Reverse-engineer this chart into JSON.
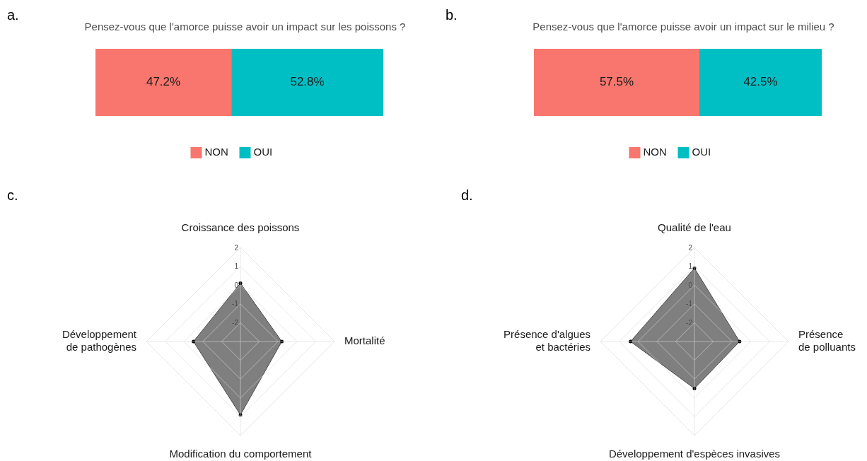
{
  "chart_data": [
    {
      "type": "bar",
      "orientation": "horizontal",
      "stacked": true,
      "title": "Pensez-vous que l'amorce puisse avoir un impact sur les poissons ?",
      "categories": [
        null
      ],
      "legend": "bottom",
      "annotations": [
        "a."
      ],
      "series": [
        {
          "name": "NON",
          "color": "#f8766d",
          "values": [
            47.2
          ],
          "value_labels": [
            "47.2%"
          ]
        },
        {
          "name": "OUI",
          "color": "#00bfc4",
          "values": [
            52.8
          ],
          "value_labels": [
            "52.8%"
          ]
        }
      ]
    },
    {
      "type": "bar",
      "orientation": "horizontal",
      "stacked": true,
      "title": "Pensez-vous que l'amorce puisse avoir un impact sur le milieu ?",
      "categories": [
        null
      ],
      "legend": "bottom",
      "annotations": [
        "b."
      ],
      "series": [
        {
          "name": "NON",
          "color": "#f8766d",
          "values": [
            57.5
          ],
          "value_labels": [
            "57.5%"
          ]
        },
        {
          "name": "OUI",
          "color": "#00bfc4",
          "values": [
            42.5
          ],
          "value_labels": [
            "42.5%"
          ]
        }
      ]
    },
    {
      "type": "radar",
      "categories": [
        "Croissance des poissons",
        "Mortalité",
        "Modification du comportement",
        "Développement\nde pathogènes"
      ],
      "ylim": [
        -3,
        2
      ],
      "yticks": [
        -2,
        -1,
        0,
        1,
        2
      ],
      "grid": true,
      "marker": "circle",
      "annotations": [
        "c."
      ],
      "series": [
        {
          "color": "#7f7f7f",
          "values": [
            0.1,
            -0.8,
            0.9,
            -0.5
          ]
        }
      ]
    },
    {
      "type": "radar",
      "categories": [
        "Qualité de l'eau",
        "Présence\nde polluants",
        "Développement d'espèces invasives",
        "Présence d'algues\net bactéries"
      ],
      "ylim": [
        -3,
        2
      ],
      "yticks": [
        -2,
        -1,
        0,
        1,
        2
      ],
      "grid": true,
      "marker": "circle",
      "annotations": [
        "d."
      ],
      "series": [
        {
          "color": "#7f7f7f",
          "values": [
            0.9,
            -0.6,
            -0.5,
            0.4
          ]
        }
      ]
    }
  ]
}
